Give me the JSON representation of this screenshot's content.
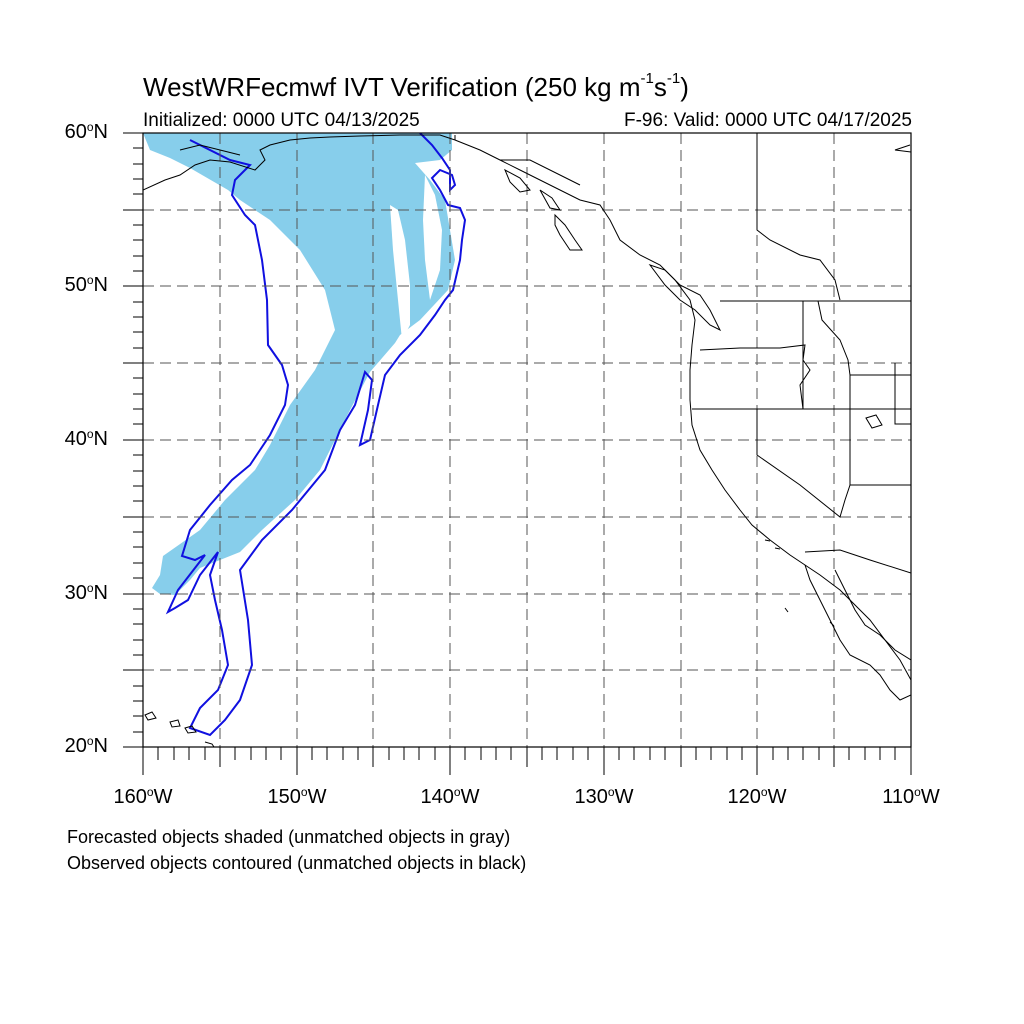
{
  "header": {
    "title_main": "WestWRFecmwf IVT Verification (250 kg m",
    "title_exp1": "-1",
    "title_mid": "s",
    "title_exp2": "-1",
    "title_end": ")",
    "initialized": "Initialized: 0000 UTC 04/13/2025",
    "valid": "F-96: Valid: 0000 UTC 04/17/2025"
  },
  "axes": {
    "lat_labels": [
      {
        "num": "60",
        "hemi": "N"
      },
      {
        "num": "50",
        "hemi": "N"
      },
      {
        "num": "40",
        "hemi": "N"
      },
      {
        "num": "30",
        "hemi": "N"
      },
      {
        "num": "20",
        "hemi": "N"
      }
    ],
    "lon_labels": [
      {
        "num": "160",
        "hemi": "W"
      },
      {
        "num": "150",
        "hemi": "W"
      },
      {
        "num": "140",
        "hemi": "W"
      },
      {
        "num": "130",
        "hemi": "W"
      },
      {
        "num": "120",
        "hemi": "W"
      },
      {
        "num": "110",
        "hemi": "W"
      }
    ],
    "lat_range": [
      20,
      60
    ],
    "lon_range": [
      -160,
      -110
    ],
    "grid_interval_deg": 5,
    "grid_style": "dashed gray"
  },
  "legend": {
    "line1": "Forecasted objects shaded (unmatched objects in gray)",
    "line2": "Observed objects contoured (unmatched objects in black)"
  },
  "colors": {
    "forecast_fill": "#87ceeb",
    "observed_contour": "#1010e0",
    "coastline": "#000000",
    "grid": "#555555"
  }
}
